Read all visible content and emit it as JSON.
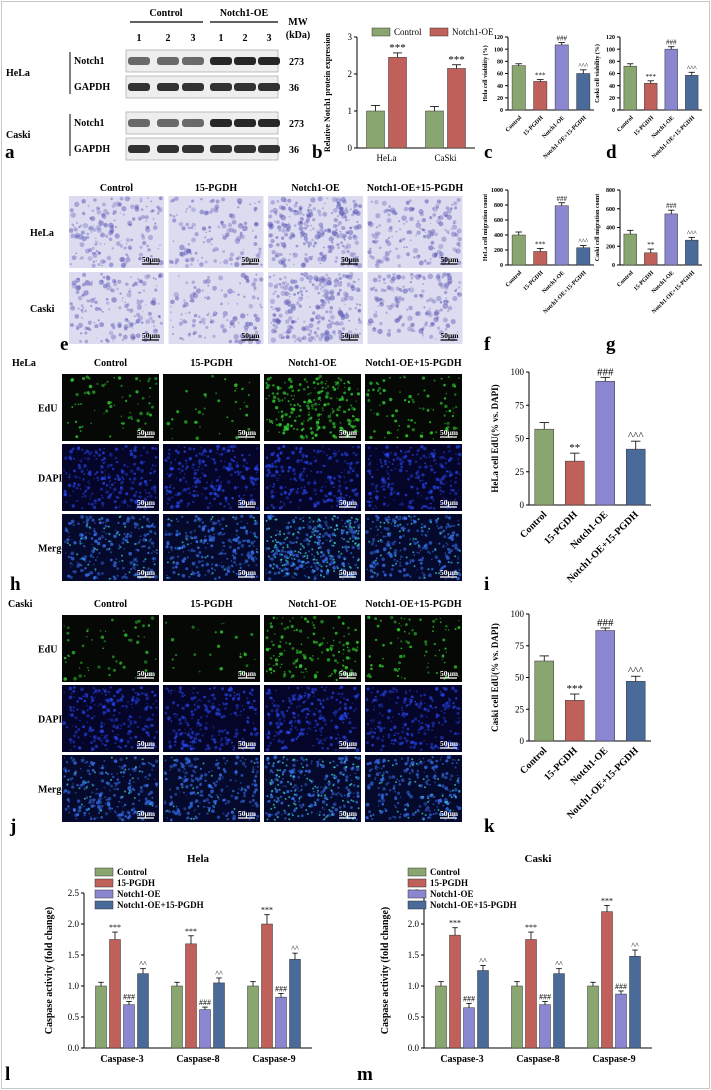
{
  "panel_letters": [
    "a",
    "b",
    "c",
    "d",
    "e",
    "f",
    "g",
    "h",
    "i",
    "j",
    "k",
    "l",
    "m"
  ],
  "western": {
    "groups": [
      "Control",
      "Notch1-OE"
    ],
    "lanes": [
      "1",
      "2",
      "3",
      "1",
      "2",
      "3"
    ],
    "mw_header": "MW\n(kDa)",
    "blocks": [
      {
        "cell": "HeLa",
        "rows": [
          {
            "name": "Notch1",
            "mw": "273"
          },
          {
            "name": "GAPDH",
            "mw": "36"
          }
        ]
      },
      {
        "cell": "Caski",
        "rows": [
          {
            "name": "Notch1",
            "mw": "273"
          },
          {
            "name": "GAPDH",
            "mw": "36"
          }
        ]
      }
    ]
  },
  "image_grids": [
    {
      "id": "e",
      "columns": [
        "Control",
        "15-PGDH",
        "Notch1-OE",
        "Notch1-OE+15-PGDH"
      ],
      "rows": [
        "HeLa",
        "Caski"
      ],
      "scale_label": "50μm",
      "colors": [
        "#b7b5e0",
        "#5a57b5"
      ]
    },
    {
      "id": "h",
      "header": "HeLa",
      "columns": [
        "Control",
        "15-PGDH",
        "Notch1-OE",
        "Notch1-OE+15-PGDH"
      ],
      "rows": [
        "EdU",
        "DAPI",
        "Merge"
      ],
      "scale_label": "50μm"
    },
    {
      "id": "j",
      "header": "Caski",
      "columns": [
        "Control",
        "15-PGDH",
        "Notch1-OE",
        "Notch1-OE+15-PGDH"
      ],
      "rows": [
        "EdU",
        "DAPI",
        "Merge"
      ],
      "scale_label": "50μm"
    }
  ],
  "chart_data": [
    {
      "id": "b",
      "type": "bar",
      "categories": [
        "HeLa",
        "CaSki"
      ],
      "series": [
        {
          "name": "Control",
          "color": "#8aa670",
          "values": [
            1.0,
            1.0
          ],
          "errors": [
            0.15,
            0.12
          ],
          "marks": [
            "",
            ""
          ]
        },
        {
          "name": "Notch1-OE",
          "color": "#c0605a",
          "values": [
            2.45,
            2.15
          ],
          "errors": [
            0.12,
            0.1
          ],
          "marks": [
            "***",
            "***"
          ]
        }
      ],
      "ylabel": "Relative Notch1 protein expression",
      "ylim": [
        0,
        3
      ],
      "yticks": [
        0,
        1,
        2,
        3
      ],
      "legend": "top"
    },
    {
      "id": "c",
      "type": "bar",
      "categories": [
        "Control",
        "15-PGDH",
        "Notch1-OE",
        "Notch1-OE+15-PGDH"
      ],
      "values": [
        73,
        47,
        107,
        60
      ],
      "errors": [
        3,
        3,
        4,
        6
      ],
      "marks": [
        "",
        "***",
        "###",
        "^^^"
      ],
      "colors": [
        "#8aa670",
        "#c0605a",
        "#8a86d0",
        "#4a6a9a"
      ],
      "ylabel": "Hela cell viability (%)",
      "ylim": [
        0,
        120
      ],
      "yticks": [
        0,
        20,
        40,
        60,
        80,
        100,
        120
      ]
    },
    {
      "id": "d",
      "type": "bar",
      "categories": [
        "Control",
        "15-PGDH",
        "Notch1-OE",
        "Notch1-OE+15-PGDH"
      ],
      "values": [
        72,
        44,
        100,
        57
      ],
      "errors": [
        4,
        4,
        4,
        5
      ],
      "marks": [
        "",
        "***",
        "###",
        "^^^"
      ],
      "colors": [
        "#8aa670",
        "#c0605a",
        "#8a86d0",
        "#4a6a9a"
      ],
      "ylabel": "Caski cell viability (%)",
      "ylim": [
        0,
        120
      ],
      "yticks": [
        0,
        20,
        40,
        60,
        80,
        100,
        120
      ]
    },
    {
      "id": "f",
      "type": "bar",
      "categories": [
        "Control",
        "15-PGDH",
        "Notch1-OE",
        "Notch1-OE+15-PGDH"
      ],
      "values": [
        400,
        180,
        790,
        230
      ],
      "errors": [
        40,
        40,
        40,
        30
      ],
      "marks": [
        "",
        "***",
        "###",
        "^^^"
      ],
      "colors": [
        "#8aa670",
        "#c0605a",
        "#8a86d0",
        "#4a6a9a"
      ],
      "ylabel": "HeLa cell migration count",
      "ylim": [
        0,
        1000
      ],
      "yticks": [
        0,
        200,
        400,
        600,
        800,
        1000
      ]
    },
    {
      "id": "g",
      "type": "bar",
      "categories": [
        "Control",
        "15-PGDH",
        "Notch1-OE",
        "Notch1-OE+15-PGDH"
      ],
      "values": [
        330,
        130,
        545,
        265
      ],
      "errors": [
        40,
        40,
        40,
        30
      ],
      "marks": [
        "",
        "**",
        "###",
        "^^^"
      ],
      "colors": [
        "#8aa670",
        "#c0605a",
        "#8a86d0",
        "#4a6a9a"
      ],
      "ylabel": "Caski cell migration count",
      "ylim": [
        0,
        800
      ],
      "yticks": [
        0,
        200,
        400,
        600,
        800
      ]
    },
    {
      "id": "i",
      "type": "bar",
      "categories": [
        "Control",
        "15-PGDH",
        "Notch1-OE",
        "Notch1-OE+15-PGDH"
      ],
      "values": [
        57,
        33,
        93,
        42
      ],
      "errors": [
        5,
        6,
        3,
        6
      ],
      "marks": [
        "",
        "**",
        "###",
        "^^^"
      ],
      "colors": [
        "#8aa670",
        "#c0605a",
        "#8a86d0",
        "#4a6a9a"
      ],
      "ylabel": "HeLa cell EdU(% vs. DAPI)",
      "ylim": [
        0,
        100
      ],
      "yticks": [
        0,
        25,
        50,
        75,
        100
      ]
    },
    {
      "id": "k",
      "type": "bar",
      "categories": [
        "Control",
        "15-PGDH",
        "Notch1-OE",
        "Notch1-OE+15-PGDH"
      ],
      "values": [
        63,
        32,
        87,
        47
      ],
      "errors": [
        4,
        5,
        2,
        4
      ],
      "marks": [
        "",
        "***",
        "###",
        "^^^"
      ],
      "colors": [
        "#8aa670",
        "#c0605a",
        "#8a86d0",
        "#4a6a9a"
      ],
      "ylabel": "Caski cell EdU(% vs. DAPI)",
      "ylim": [
        0,
        100
      ],
      "yticks": [
        0,
        25,
        50,
        75,
        100
      ]
    },
    {
      "id": "l",
      "type": "bar",
      "title": "Hela",
      "categories": [
        "Caspase-3",
        "Caspase-8",
        "Caspase-9"
      ],
      "series": [
        {
          "name": "Control",
          "color": "#8aa670",
          "values": [
            1.0,
            1.0,
            1.0
          ],
          "errors": [
            0.06,
            0.06,
            0.07
          ],
          "marks": [
            "",
            "",
            ""
          ]
        },
        {
          "name": "15-PGDH",
          "color": "#c0605a",
          "values": [
            1.75,
            1.68,
            2.0
          ],
          "errors": [
            0.12,
            0.13,
            0.15
          ],
          "marks": [
            "***",
            "***",
            "***"
          ]
        },
        {
          "name": "Notch1-OE",
          "color": "#8a86d0",
          "values": [
            0.7,
            0.62,
            0.82
          ],
          "errors": [
            0.05,
            0.04,
            0.06
          ],
          "marks": [
            "###",
            "###",
            "###"
          ]
        },
        {
          "name": "Notch1-OE+15-PGDH",
          "color": "#4a6a9a",
          "values": [
            1.2,
            1.05,
            1.43
          ],
          "errors": [
            0.08,
            0.08,
            0.1
          ],
          "marks": [
            "^^",
            "^^",
            "^^"
          ]
        }
      ],
      "ylabel": "Caspase activity (fold change)",
      "ylim": [
        0,
        2.5
      ],
      "yticks": [
        0.0,
        0.5,
        1.0,
        1.5,
        2.0,
        2.5
      ],
      "legend": "top-left"
    },
    {
      "id": "m",
      "type": "bar",
      "title": "Caski",
      "categories": [
        "Caspase-3",
        "Caspase-8",
        "Caspase-9"
      ],
      "series": [
        {
          "name": "Control",
          "color": "#8aa670",
          "values": [
            1.0,
            1.0,
            1.0
          ],
          "errors": [
            0.07,
            0.07,
            0.06
          ],
          "marks": [
            "",
            "",
            ""
          ]
        },
        {
          "name": "15-PGDH",
          "color": "#c0605a",
          "values": [
            1.82,
            1.75,
            2.2
          ],
          "errors": [
            0.12,
            0.12,
            0.1
          ],
          "marks": [
            "***",
            "***",
            "***"
          ]
        },
        {
          "name": "Notch1-OE",
          "color": "#8a86d0",
          "values": [
            0.65,
            0.7,
            0.87
          ],
          "errors": [
            0.07,
            0.05,
            0.05
          ],
          "marks": [
            "###",
            "###",
            "###"
          ]
        },
        {
          "name": "Notch1-OE+15-PGDH",
          "color": "#4a6a9a",
          "values": [
            1.25,
            1.2,
            1.48
          ],
          "errors": [
            0.08,
            0.08,
            0.1
          ],
          "marks": [
            "^^",
            "^^",
            "^^"
          ]
        }
      ],
      "ylabel": "Caspase activity (fold change)",
      "ylim": [
        0,
        2.5
      ],
      "yticks": [
        0.0,
        0.5,
        1.0,
        1.5,
        2.0,
        2.5
      ],
      "legend": "top-left"
    }
  ]
}
